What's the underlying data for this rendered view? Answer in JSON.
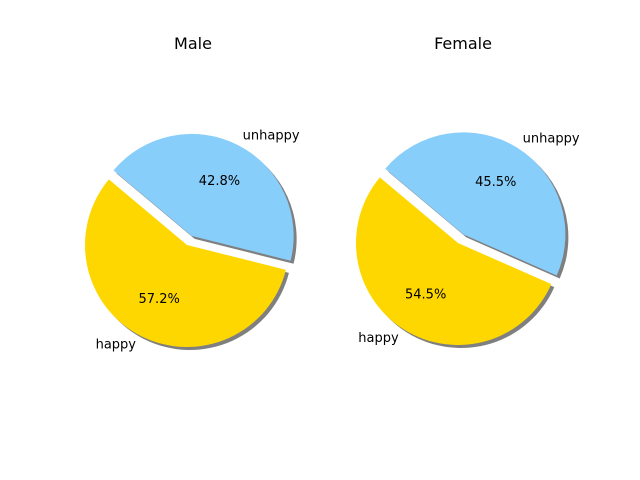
{
  "chart_data": [
    {
      "type": "pie",
      "title": "Male",
      "slices": [
        {
          "label": "happy",
          "value": 57.2,
          "pct_label": "57.2%",
          "color": "#FFD700",
          "exploded": false
        },
        {
          "label": "unhappy",
          "value": 42.8,
          "pct_label": "42.8%",
          "color": "#87CEFA",
          "exploded": true
        }
      ],
      "shadow": true
    },
    {
      "type": "pie",
      "title": "Female",
      "slices": [
        {
          "label": "happy",
          "value": 54.5,
          "pct_label": "54.5%",
          "color": "#FFD700",
          "exploded": false
        },
        {
          "label": "unhappy",
          "value": 45.5,
          "pct_label": "45.5%",
          "color": "#87CEFA",
          "exploded": true
        }
      ],
      "shadow": true
    }
  ]
}
